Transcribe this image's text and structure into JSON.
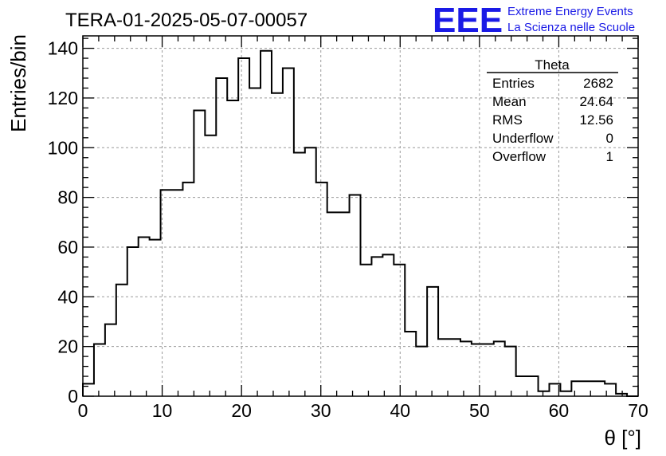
{
  "header": {
    "run_title": "TERA-01-2025-05-07-00057",
    "logo_mark": "EEE",
    "logo_line1": "Extreme Energy Events",
    "logo_line2": "La Scienza nelle Scuole",
    "logo_color": "#1a1ae6"
  },
  "stats_box": {
    "title": "Theta",
    "rows": [
      {
        "label": "Entries",
        "value": "2682"
      },
      {
        "label": "Mean",
        "value": "24.64"
      },
      {
        "label": "RMS",
        "value": "12.56"
      },
      {
        "label": "Underflow",
        "value": "0"
      },
      {
        "label": "Overflow",
        "value": "1"
      }
    ]
  },
  "chart_data": {
    "type": "bar",
    "style": "step-histogram",
    "xlabel": "θ [°]",
    "ylabel": "Entries/bin",
    "xlim": [
      0,
      70
    ],
    "ylim": [
      0,
      145
    ],
    "x_ticks": [
      0,
      10,
      20,
      30,
      40,
      50,
      60,
      70
    ],
    "y_ticks": [
      0,
      20,
      40,
      60,
      80,
      100,
      120,
      140
    ],
    "grid": true,
    "bin_width": 1.4,
    "bin_edges_start": 0,
    "values": [
      5,
      21,
      29,
      45,
      60,
      64,
      63,
      83,
      83,
      86,
      115,
      105,
      128,
      119,
      136,
      124,
      139,
      122,
      132,
      98,
      100,
      86,
      74,
      74,
      81,
      53,
      56,
      57,
      53,
      26,
      20,
      44,
      23,
      23,
      22,
      21,
      21,
      22,
      20,
      8,
      8,
      2,
      5,
      2,
      6,
      6,
      6,
      5,
      1,
      0
    ]
  }
}
